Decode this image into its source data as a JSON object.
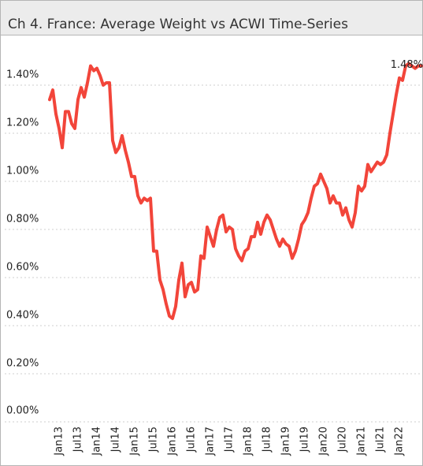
{
  "chart_data": {
    "type": "line",
    "title": "Ch 4. France:  Average Weight vs ACWI Time-Series",
    "categories": [
      null,
      null,
      null,
      "Jan13",
      null,
      null,
      null,
      null,
      null,
      "Jul13",
      null,
      null,
      null,
      null,
      null,
      "Jan14",
      null,
      null,
      null,
      null,
      null,
      "Jul14",
      null,
      null,
      null,
      null,
      null,
      "Jan15",
      null,
      null,
      null,
      null,
      null,
      "Jul15",
      null,
      null,
      null,
      null,
      null,
      "Jan16",
      null,
      null,
      null,
      null,
      null,
      "Jul16",
      null,
      null,
      null,
      null,
      null,
      "Jan17",
      null,
      null,
      null,
      null,
      null,
      "Jul17",
      null,
      null,
      null,
      null,
      null,
      "Jan18",
      null,
      null,
      null,
      null,
      null,
      "Jul18",
      null,
      null,
      null,
      null,
      null,
      "Jan19",
      null,
      null,
      null,
      null,
      null,
      "Jul19",
      null,
      null,
      null,
      null,
      null,
      "Jan20",
      null,
      null,
      null,
      null,
      null,
      "Jul20",
      null,
      null,
      null,
      null,
      null,
      "Jan21",
      null,
      null,
      null,
      null,
      null,
      "Jul21",
      null,
      null,
      null,
      null,
      null,
      "Jan22",
      null,
      null,
      null,
      null,
      null,
      null,
      null
    ],
    "values": [
      1.34,
      1.38,
      1.28,
      1.22,
      1.14,
      1.29,
      1.29,
      1.24,
      1.22,
      1.34,
      1.39,
      1.35,
      1.41,
      1.48,
      1.46,
      1.47,
      1.44,
      1.4,
      1.41,
      1.41,
      1.17,
      1.12,
      1.14,
      1.19,
      1.13,
      1.08,
      1.02,
      1.02,
      0.94,
      0.91,
      0.93,
      0.92,
      0.93,
      0.71,
      0.71,
      0.59,
      0.55,
      0.49,
      0.44,
      0.43,
      0.48,
      0.59,
      0.66,
      0.52,
      0.57,
      0.58,
      0.54,
      0.55,
      0.69,
      0.68,
      0.81,
      0.77,
      0.73,
      0.8,
      0.85,
      0.86,
      0.79,
      0.81,
      0.8,
      0.72,
      0.69,
      0.67,
      0.71,
      0.72,
      0.77,
      0.77,
      0.83,
      0.78,
      0.83,
      0.86,
      0.84,
      0.8,
      0.76,
      0.73,
      0.76,
      0.74,
      0.73,
      0.68,
      0.71,
      0.76,
      0.82,
      0.84,
      0.87,
      0.93,
      0.98,
      0.99,
      1.03,
      1.0,
      0.97,
      0.91,
      0.94,
      0.91,
      0.91,
      0.86,
      0.89,
      0.84,
      0.81,
      0.87,
      0.98,
      0.96,
      0.98,
      1.07,
      1.04,
      1.06,
      1.08,
      1.07,
      1.08,
      1.11,
      1.2,
      1.28,
      1.36,
      1.43,
      1.42,
      1.48,
      1.49,
      1.48,
      1.47,
      1.48,
      1.48
    ],
    "value_labels": [
      null,
      null,
      null,
      null,
      null,
      null,
      null,
      null,
      null,
      null,
      null,
      null,
      null,
      null,
      null,
      null,
      null,
      null,
      null,
      null,
      null,
      null,
      null,
      null,
      null,
      null,
      null,
      null,
      null,
      null,
      null,
      null,
      null,
      null,
      null,
      null,
      null,
      null,
      null,
      null,
      null,
      null,
      null,
      null,
      null,
      null,
      null,
      null,
      null,
      null,
      null,
      null,
      null,
      null,
      null,
      null,
      null,
      null,
      null,
      null,
      null,
      null,
      null,
      null,
      null,
      null,
      null,
      null,
      null,
      null,
      null,
      null,
      null,
      null,
      null,
      null,
      null,
      null,
      null,
      null,
      null,
      null,
      null,
      null,
      null,
      null,
      null,
      null,
      null,
      null,
      null,
      null,
      null,
      null,
      null,
      null,
      null,
      null,
      null,
      null,
      null,
      null,
      null,
      null,
      null,
      null,
      null,
      null,
      null,
      null,
      null,
      null,
      null,
      null,
      null,
      null,
      null,
      null,
      "1.48%"
    ],
    "color": "#f2453a",
    "ylim": [
      0,
      1.6
    ],
    "yticks": [
      {
        "value": 0,
        "label": "0.00%"
      },
      {
        "value": 0.2,
        "label": "0.20%"
      },
      {
        "value": 0.4,
        "label": "0.40%"
      },
      {
        "value": 0.6,
        "label": "0.60%"
      },
      {
        "value": 0.8,
        "label": "0.80%"
      },
      {
        "value": 1.0,
        "label": "1.00%"
      },
      {
        "value": 1.2,
        "label": "1.20%"
      },
      {
        "value": 1.4,
        "label": "1.40%"
      }
    ],
    "grid": true
  }
}
